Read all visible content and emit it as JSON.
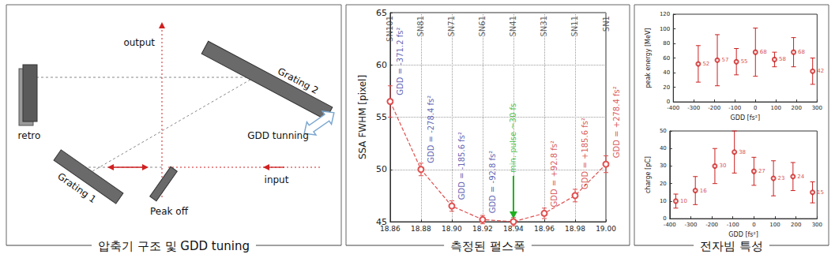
{
  "panels": {
    "captions": [
      "압축기 구조 및 GDD tuning",
      "측정된 펄스폭",
      "전자빔 특성"
    ]
  },
  "diagram": {
    "labels": {
      "retro": "retro",
      "grating1": "Grating 1",
      "grating2": "Grating 2",
      "peak_off": "Peak off",
      "input": "input",
      "output": "output",
      "gdd_tuning": "GDD tunning"
    }
  },
  "chart_data": [
    {
      "type": "line",
      "x": [
        18.86,
        18.88,
        18.9,
        18.92,
        18.94,
        18.96,
        18.98,
        19.0
      ],
      "values": [
        56.5,
        50.0,
        46.5,
        45.2,
        45.0,
        45.8,
        47.5,
        50.5
      ],
      "errors": [
        1.5,
        0.6,
        0.5,
        0.4,
        0.4,
        0.5,
        0.6,
        0.8
      ],
      "color": "#e05050",
      "marker": "circle",
      "line_style": "dashed",
      "ylabel": "SSA FWHM [pixel]",
      "xlim": [
        18.86,
        19.0
      ],
      "xticks": [
        18.86,
        18.88,
        {
          "value": 18.9,
          "label": "18.90"
        },
        18.92,
        18.94,
        18.96,
        18.98,
        {
          "value": 19.0,
          "label": "19.00"
        }
      ],
      "ylim": [
        45,
        65
      ],
      "yticks": [
        45,
        50,
        55,
        60,
        65
      ],
      "grid": true,
      "top_labels": [
        "SN101",
        "SN81",
        "SN71",
        "SN61",
        "SN41",
        "SN31",
        "SN11",
        "SN1"
      ],
      "annotations": [
        {
          "x": 18.86,
          "text": "GDD = -371.2 fs²",
          "color": "#3a3aa0"
        },
        {
          "x": 18.88,
          "text": "GDD = -278.4 fs²",
          "color": "#3a3aa0"
        },
        {
          "x": 18.9,
          "text": "GDD = -185.6 fs²",
          "color": "#3a3aa0"
        },
        {
          "x": 18.92,
          "text": "GDD = -92.8 fs²",
          "color": "#3a3aa0"
        },
        {
          "x": 18.94,
          "text": "min. pulse ~30 fs",
          "color": "#20b020",
          "marker": "arrow"
        },
        {
          "x": 18.96,
          "text": "GDD = +92.8 fs²",
          "color": "#d03030"
        },
        {
          "x": 18.98,
          "text": "GDD = +185.6 fs²",
          "color": "#d03030"
        },
        {
          "x": 19.0,
          "text": "GDD = +278.4 fs²",
          "color": "#d03030"
        }
      ]
    },
    {
      "type": "scatter",
      "x": [
        -278.4,
        -185.6,
        -92.8,
        0,
        92.8,
        185.6,
        278.4
      ],
      "values": [
        52,
        57,
        55,
        68,
        58,
        68,
        42
      ],
      "errors": [
        25,
        35,
        18,
        33,
        10,
        20,
        18
      ],
      "color": "#cc2020",
      "marker": "circle",
      "xlabel": "GDD [fs²]",
      "ylabel": "peak energy [MeV]",
      "xlim": [
        -400,
        300
      ],
      "xticks": [
        -400,
        -300,
        -200,
        -100,
        0,
        100,
        200,
        300
      ],
      "ylim": [
        0,
        120
      ],
      "yticks": [
        0,
        20,
        40,
        60,
        80,
        100,
        120
      ],
      "grid": false,
      "data_labels": true
    },
    {
      "type": "scatter",
      "x": [
        -371.2,
        -278.4,
        -185.6,
        -92.8,
        0,
        92.8,
        185.6,
        278.4
      ],
      "values": [
        10,
        16,
        30,
        38,
        27,
        23,
        24,
        15
      ],
      "errors": [
        4,
        8,
        10,
        12,
        8,
        10,
        8,
        6
      ],
      "color": "#cc2020",
      "marker": "circle",
      "xlabel": "GDD [fs²]",
      "ylabel": "charge [pC]",
      "xlim": [
        -400,
        300
      ],
      "xticks": [
        -400,
        -300,
        -200,
        -100,
        0,
        100,
        200,
        300
      ],
      "ylim": [
        0,
        50
      ],
      "yticks": [
        0,
        10,
        20,
        30,
        40,
        50
      ],
      "grid": false,
      "data_labels": true
    }
  ]
}
